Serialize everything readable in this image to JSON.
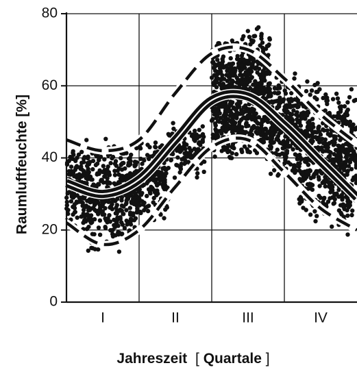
{
  "chart_data": {
    "type": "scatter",
    "title": "",
    "xlabel": "",
    "ylabel": "Raumluftfeuchte [%]",
    "x_title": {
      "part1": "Jahreszeit",
      "open_bracket": "[",
      "part2": "Quartale",
      "close_bracket": "]"
    },
    "categories": [
      "I",
      "II",
      "III",
      "IV"
    ],
    "xlim": [
      0,
      4
    ],
    "ylim": [
      0,
      80
    ],
    "yticks": [
      0,
      20,
      40,
      60,
      80
    ],
    "grid": true,
    "legend": "none",
    "colors": {
      "points": "#111111",
      "lines": "#111111",
      "grid": "#111111",
      "background": "#ffffff"
    },
    "series": [
      {
        "kind": "mean-line",
        "style": "solid",
        "x": [
          0,
          0.5,
          1,
          1.5,
          2,
          2.5,
          3,
          3.5,
          4
        ],
        "y": [
          33,
          30,
          34,
          45,
          56,
          57,
          49,
          39,
          29
        ]
      },
      {
        "kind": "upper-band",
        "style": "dashed",
        "x": [
          0,
          0.5,
          1,
          1.5,
          2,
          2.5,
          3,
          3.5,
          4
        ],
        "y": [
          45,
          42,
          45,
          58,
          69,
          70,
          62,
          52,
          44
        ]
      },
      {
        "kind": "lower-band",
        "style": "dashed",
        "x": [
          0,
          0.5,
          1,
          1.5,
          2,
          2.5,
          3,
          3.5,
          4
        ],
        "y": [
          22,
          16,
          20,
          32,
          43,
          45,
          36,
          26,
          20
        ]
      }
    ],
    "scatter_clusters": [
      {
        "x_range": [
          0.0,
          0.3
        ],
        "y_range": [
          18,
          46
        ],
        "count": 180
      },
      {
        "x_range": [
          0.3,
          0.8
        ],
        "y_range": [
          13,
          46
        ],
        "count": 260
      },
      {
        "x_range": [
          0.8,
          1.0
        ],
        "y_range": [
          18,
          44
        ],
        "count": 120
      },
      {
        "x_range": [
          1.0,
          1.4
        ],
        "y_range": [
          22,
          46
        ],
        "count": 150
      },
      {
        "x_range": [
          1.4,
          1.9
        ],
        "y_range": [
          34,
          50
        ],
        "count": 140
      },
      {
        "x_range": [
          2.0,
          2.4
        ],
        "y_range": [
          38,
          74
        ],
        "count": 420
      },
      {
        "x_range": [
          2.4,
          2.8
        ],
        "y_range": [
          38,
          78
        ],
        "count": 380
      },
      {
        "x_range": [
          2.8,
          3.2
        ],
        "y_range": [
          32,
          66
        ],
        "count": 260
      },
      {
        "x_range": [
          3.2,
          3.6
        ],
        "y_range": [
          22,
          62
        ],
        "count": 300
      },
      {
        "x_range": [
          3.6,
          4.0
        ],
        "y_range": [
          18,
          60
        ],
        "count": 320
      }
    ]
  }
}
